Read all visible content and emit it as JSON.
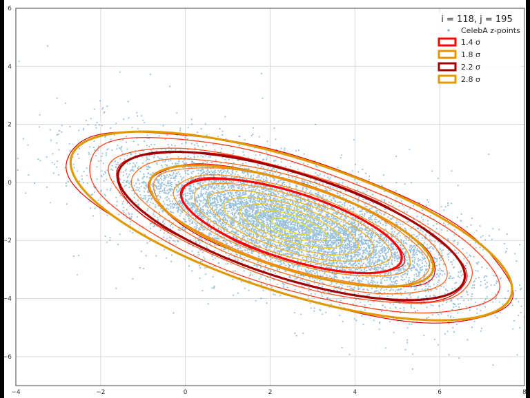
{
  "chart_data": {
    "type": "scatter",
    "title": "",
    "xlabel": "",
    "ylabel": "",
    "xlim": [
      -4,
      8
    ],
    "ylim": [
      -7,
      6
    ],
    "x_ticks": [
      -4,
      -2,
      0,
      2,
      4,
      6,
      8
    ],
    "y_ticks": [
      -6,
      -4,
      -2,
      0,
      2,
      4,
      6
    ],
    "grid": true,
    "legend_placement": "top-right",
    "legend_title": "i = 118,   j = 195",
    "scatter_series": {
      "name": "CelebA z-points",
      "color": "#1f77b4",
      "mean": [
        2.5,
        -1.5
      ],
      "std_major": 2.05,
      "std_minor": 0.78,
      "angle_deg": -27,
      "count": 9000
    },
    "sigma_ellipses": [
      {
        "label": "1.4 σ",
        "k": 1.4,
        "color": "#ff0000"
      },
      {
        "label": "1.8 σ",
        "k": 1.8,
        "color": "#e59400"
      },
      {
        "label": "2.2 σ",
        "k": 2.2,
        "color": "#a00000"
      },
      {
        "label": "2.8 σ",
        "k": 2.8,
        "color": "#e09a00"
      }
    ],
    "density_contours": {
      "levels_sigma": [
        0.25,
        0.45,
        0.65,
        0.85,
        1.05,
        1.25,
        1.5,
        1.75,
        2.0,
        2.3,
        2.6
      ],
      "colormap": "autumn"
    }
  }
}
